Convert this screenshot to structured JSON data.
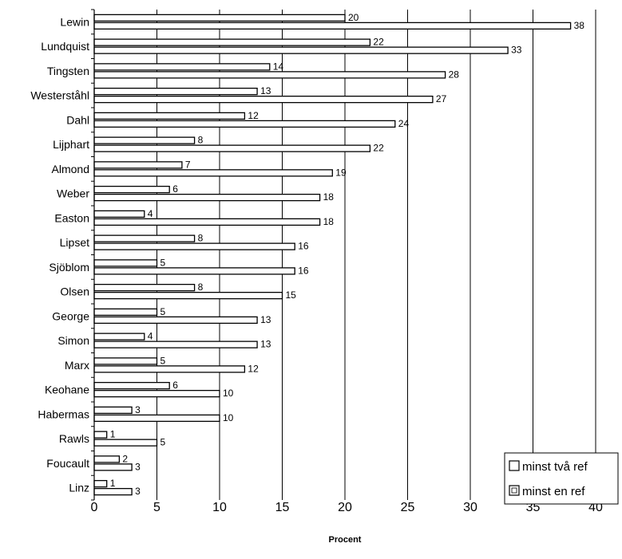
{
  "chart_data": {
    "type": "bar",
    "orientation": "horizontal",
    "categories": [
      "Lewin",
      "Lundquist",
      "Tingsten",
      "Westerståhl",
      "Dahl",
      "Lijphart",
      "Almond",
      "Weber",
      "Easton",
      "Lipset",
      "Sjöblom",
      "Olsen",
      "George",
      "Simon",
      "Marx",
      "Keohane",
      "Habermas",
      "Rawls",
      "Foucault",
      "Linz"
    ],
    "series": [
      {
        "name": "minst två ref",
        "values": [
          20,
          22,
          14,
          13,
          12,
          8,
          7,
          6,
          4,
          8,
          5,
          8,
          5,
          4,
          5,
          6,
          3,
          1,
          2,
          1
        ]
      },
      {
        "name": "minst en ref",
        "values": [
          38,
          33,
          28,
          27,
          24,
          22,
          19,
          18,
          18,
          16,
          16,
          15,
          13,
          13,
          12,
          10,
          10,
          5,
          3,
          3
        ]
      }
    ],
    "xlabel": "Procent",
    "ylabel": "",
    "title": "",
    "xlim": [
      0,
      40
    ],
    "xticks": [
      "0",
      "5",
      "10",
      "15",
      "20",
      "25",
      "30",
      "35",
      "40"
    ],
    "grid": "vertical",
    "legend_position": "bottom-right",
    "colors": {
      "bar_fill": "#ffffff",
      "stroke": "#000000",
      "background": "#ffffff"
    }
  }
}
